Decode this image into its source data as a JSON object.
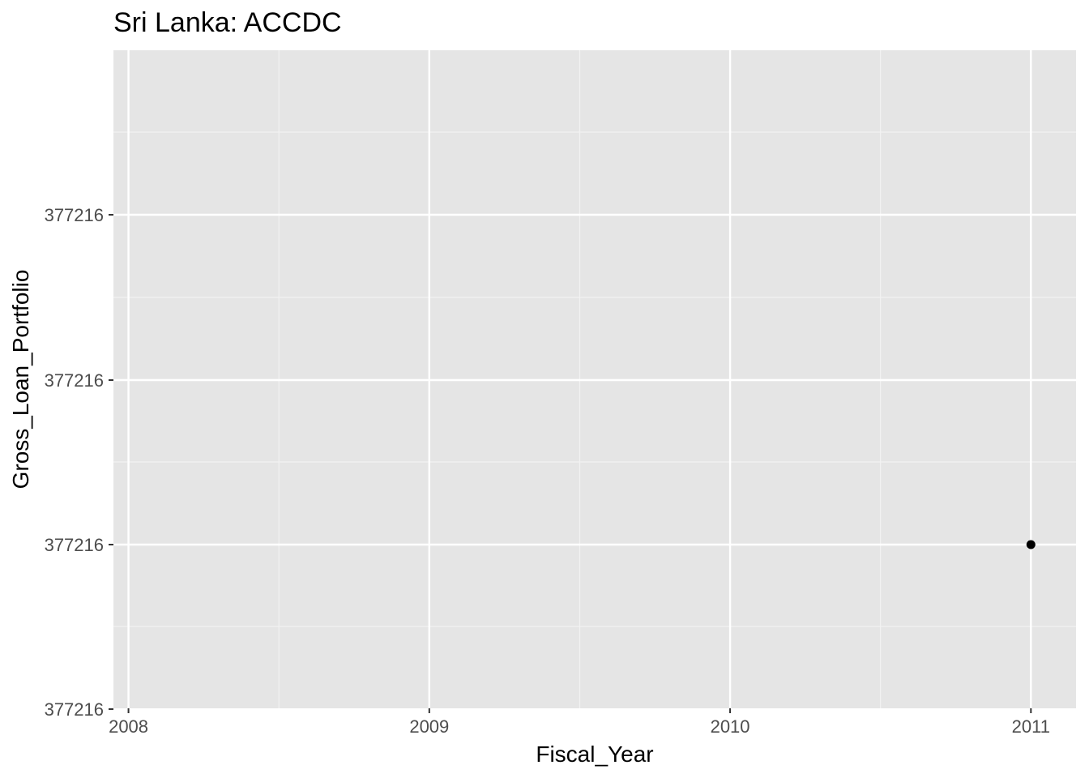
{
  "chart_data": {
    "type": "scatter",
    "title": "Sri Lanka:  ACCDC",
    "xlabel": "Fiscal_Year",
    "ylabel": "Gross_Loan_Portfolio",
    "x_ticks": [
      2008,
      2009,
      2010,
      2011
    ],
    "x_tick_labels": [
      "2008",
      "2009",
      "2010",
      "2011"
    ],
    "y_tick_labels": [
      "377216",
      "377216",
      "377216",
      "377216"
    ],
    "points": [
      {
        "x": 2011,
        "y": 377216
      }
    ],
    "xlim": [
      2007.95,
      2011.15
    ],
    "grid": true,
    "legend": "none",
    "colors": {
      "panel_background": "#e5e5e5",
      "grid_major": "#ffffff",
      "grid_minor": "#f2f2f2",
      "point": "#000000",
      "tick_mark": "#333333",
      "tick_label": "#4d4d4d"
    }
  }
}
